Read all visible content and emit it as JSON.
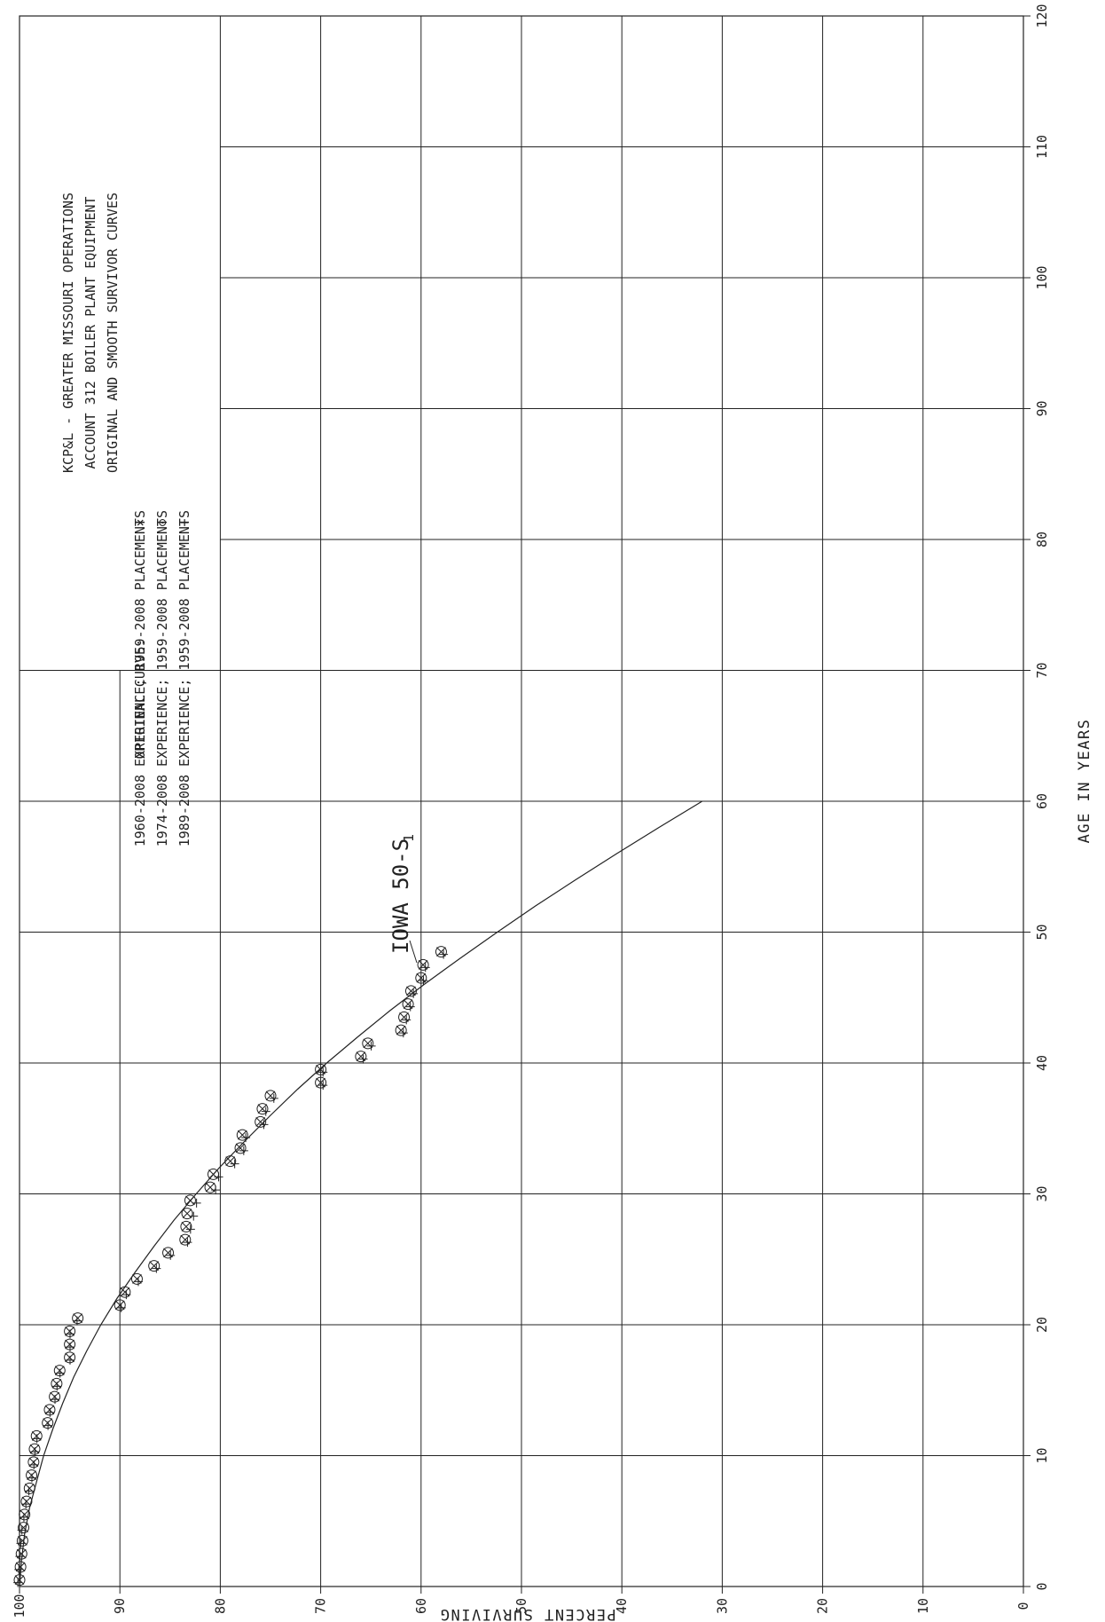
{
  "chart_data": {
    "type": "scatter",
    "orientation": "rotated 90 degrees clockwise",
    "title_lines": [
      "KCP&L - GREATER MISSOURI OPERATIONS",
      "ACCOUNT 312 BOILER PLANT EQUIPMENT",
      "ORIGINAL AND SMOOTH SURVIVOR CURVES"
    ],
    "legend_prefix": "ORIGINAL CURVE:",
    "legend_entries": [
      {
        "symbol": "×",
        "label": "1960-2008 EXPERIENCE; 1959-2008 PLACEMENTS"
      },
      {
        "symbol": "⊙",
        "label": "1974-2008 EXPERIENCE; 1959-2008 PLACEMENTS"
      },
      {
        "symbol": "+",
        "label": "1989-2008 EXPERIENCE; 1959-2008 PLACEMENTS"
      }
    ],
    "xlabel": "AGE IN YEARS",
    "ylabel": "PERCENT SURVIVING",
    "xlim": [
      0,
      120
    ],
    "ylim": [
      0,
      100
    ],
    "x_ticks": [
      "0",
      "10",
      "20",
      "30",
      "40",
      "50",
      "60",
      "70",
      "80",
      "90",
      "100",
      "110",
      "120"
    ],
    "y_ticks": [
      "100",
      "90",
      "80",
      "70",
      "60",
      "50",
      "40",
      "30",
      "20",
      "10",
      "0"
    ],
    "grid": true,
    "curve_label": "IOWA 50-S",
    "curve_label_subscript": "1",
    "smooth_curve": {
      "x": [
        0,
        2,
        4,
        6,
        8,
        10,
        12,
        14,
        16,
        18,
        20,
        22,
        24,
        26,
        28,
        30,
        32,
        34,
        36,
        38,
        40,
        42,
        44,
        46,
        48,
        50,
        52,
        54,
        56,
        58,
        60
      ],
      "y": [
        100,
        99.8,
        99.5,
        99,
        98.3,
        97.6,
        96.7,
        95.7,
        94.6,
        93.3,
        91.9,
        90.3,
        88.5,
        86.6,
        84.6,
        82.4,
        80.1,
        77.6,
        75,
        72.3,
        69.4,
        66.3,
        63.1,
        59.7,
        56.1,
        52.4,
        48.6,
        44.6,
        40.5,
        36.3,
        32
      ]
    },
    "series": [
      {
        "symbol": "x",
        "x": [
          0.5,
          1.5,
          2.5,
          3.5,
          4.5,
          5.5,
          6.5,
          7.5,
          8.5,
          9.5,
          10.5,
          11.5,
          12.5,
          13.5,
          14.5,
          15.5,
          16.5,
          17.5,
          18.5,
          19.5,
          20.5,
          21.5,
          22.5,
          23.5,
          24.5,
          25.5,
          26.5,
          27.5,
          28.5,
          29.5,
          30.5,
          31.5,
          32.5,
          33.5,
          34.5,
          35.5,
          36.5,
          37.5,
          38.5,
          39.5,
          40.5,
          41.5,
          42.5,
          43.5,
          44.5,
          45.5,
          46.5,
          47.5,
          48.5
        ],
        "y": [
          100,
          99.9,
          99.8,
          99.7,
          99.6,
          99.5,
          99.3,
          99,
          98.8,
          98.6,
          98.5,
          98.3,
          97.2,
          97,
          96.5,
          96.3,
          96,
          95,
          95,
          95,
          94.2,
          90,
          89.5,
          88.3,
          86.6,
          85.2,
          83.5,
          83.4,
          83.3,
          83,
          81,
          80.7,
          79,
          78,
          77.8,
          76,
          75.8,
          75,
          70,
          70,
          66,
          65.3,
          62,
          61.7,
          61.3,
          61,
          60,
          59.8,
          58
        ]
      },
      {
        "symbol": "circle",
        "x": [
          0.5,
          1.5,
          2.5,
          3.5,
          4.5,
          5.5,
          6.5,
          7.5,
          8.5,
          9.5,
          10.5,
          11.5,
          12.5,
          13.5,
          14.5,
          15.5,
          16.5,
          17.5,
          18.5,
          19.5,
          20.5,
          21.5,
          22.5,
          23.5,
          24.5,
          25.5,
          26.5,
          27.5,
          28.5,
          29.5,
          30.5,
          31.5,
          32.5,
          33.5,
          34.5,
          35.5,
          36.5,
          37.5,
          38.5,
          39.5,
          40.5,
          41.5,
          42.5,
          43.5,
          44.5,
          45.5,
          46.5,
          47.5,
          48.5
        ],
        "y": [
          100,
          99.9,
          99.8,
          99.7,
          99.6,
          99.5,
          99.3,
          99,
          98.8,
          98.6,
          98.5,
          98.3,
          97.2,
          97,
          96.5,
          96.3,
          96,
          95,
          95,
          95,
          94.2,
          90,
          89.5,
          88.3,
          86.6,
          85.2,
          83.5,
          83.4,
          83.3,
          83,
          81,
          80.7,
          79,
          78,
          77.8,
          76,
          75.8,
          75,
          70,
          70,
          66,
          65.3,
          62,
          61.7,
          61.3,
          61,
          60,
          59.8,
          58
        ]
      },
      {
        "symbol": "+",
        "x": [
          0.5,
          1.5,
          2.5,
          3.5,
          4.5,
          5.5,
          6.5,
          7.5,
          8.5,
          9.5,
          10.5,
          11.5,
          12.5,
          13.5,
          14.5,
          15.5,
          16.5,
          17.5,
          18.5,
          19.5,
          20.5,
          21.5,
          22.5,
          23.5,
          24.5,
          25.5,
          26.5,
          27.5,
          28.5,
          29.5,
          30.5,
          31.5,
          32.5,
          33.5,
          34.5,
          35.5,
          36.5,
          37.5,
          38.5,
          39.5,
          40.5,
          41.5,
          42.5,
          43.5,
          44.5,
          45.5,
          46.5,
          47.5,
          48.5
        ],
        "y": [
          99.9,
          99.8,
          99.7,
          99.6,
          99.5,
          99.3,
          99.1,
          98.8,
          98.5,
          98.3,
          98.2,
          98,
          96.9,
          96.7,
          96.2,
          96,
          95.7,
          94.7,
          94.7,
          94.7,
          94,
          89.6,
          89.1,
          87.9,
          86.1,
          84.7,
          83,
          82.7,
          82.4,
          82.1,
          80.2,
          79.9,
          78.3,
          77.4,
          77.2,
          75.4,
          75.2,
          74.4,
          69.5,
          69.5,
          65.5,
          64.7,
          61.5,
          61.2,
          60.8,
          60.5,
          59.5,
          59.3,
          57.5
        ]
      }
    ]
  }
}
